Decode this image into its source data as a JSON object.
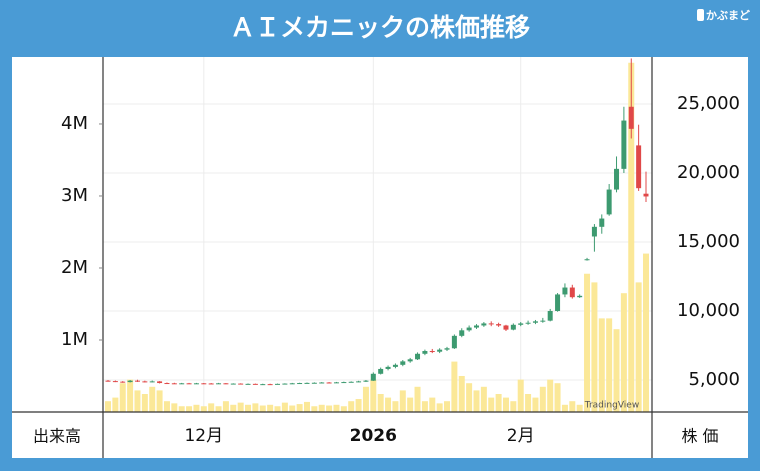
{
  "chart_data": {
    "type": "candlestick",
    "title": "ＡＩメカニックの株価推移",
    "logo": "かぶまど",
    "watermark": "TradingView",
    "y_label": "株 価",
    "y2_label": "出来高",
    "categories": [
      null,
      null,
      null,
      null,
      null,
      null,
      null,
      null,
      null,
      null,
      null,
      null,
      null,
      "12月",
      null,
      null,
      null,
      null,
      null,
      null,
      null,
      null,
      null,
      null,
      null,
      null,
      null,
      null,
      null,
      null,
      null,
      null,
      null,
      null,
      null,
      null,
      "2026",
      null,
      null,
      null,
      null,
      null,
      null,
      null,
      null,
      null,
      null,
      null,
      null,
      null,
      null,
      null,
      null,
      null,
      null,
      null,
      "2月",
      null,
      null,
      null,
      null,
      null,
      null,
      null,
      null,
      null,
      null,
      null,
      null,
      null,
      null,
      null,
      null,
      null
    ],
    "open": [
      4950,
      4920,
      4880,
      4850,
      4950,
      4900,
      4850,
      4900,
      4780,
      4760,
      4750,
      4760,
      4740,
      4760,
      4750,
      4740,
      4760,
      4720,
      4740,
      4700,
      4720,
      4690,
      4700,
      4690,
      4720,
      4740,
      4760,
      4780,
      4790,
      4800,
      4820,
      4800,
      4830,
      4850,
      4870,
      4900,
      4950,
      5450,
      5800,
      5950,
      6100,
      6350,
      6500,
      6900,
      7100,
      7050,
      7200,
      7300,
      8200,
      8600,
      8800,
      8950,
      9100,
      9050,
      8950,
      8650,
      9000,
      9100,
      9150,
      9250,
      9300,
      10000,
      11200,
      11700,
      11000,
      13700,
      15400,
      16100,
      17000,
      18800,
      20300,
      24800,
      22000,
      18500
    ],
    "high": [
      5000,
      4960,
      4920,
      5000,
      5020,
      4950,
      4960,
      4920,
      4820,
      4800,
      4790,
      4790,
      4790,
      4780,
      4780,
      4790,
      4780,
      4760,
      4760,
      4750,
      4740,
      4730,
      4730,
      4740,
      4760,
      4790,
      4800,
      4820,
      4830,
      4850,
      4850,
      4860,
      4880,
      4900,
      4940,
      5000,
      5550,
      5900,
      6050,
      6200,
      6450,
      6600,
      7000,
      7200,
      7250,
      7300,
      7400,
      8300,
      8750,
      8950,
      9050,
      9200,
      9250,
      9150,
      9000,
      9100,
      9200,
      9300,
      9350,
      9500,
      10150,
      11300,
      12000,
      11900,
      11200,
      13850,
      16300,
      17000,
      19200,
      21200,
      24800,
      28300,
      23500,
      20100
    ],
    "low": [
      4880,
      4850,
      4800,
      4820,
      4860,
      4820,
      4830,
      4750,
      4720,
      4720,
      4720,
      4710,
      4720,
      4720,
      4720,
      4720,
      4700,
      4700,
      4680,
      4680,
      4670,
      4670,
      4670,
      4670,
      4700,
      4720,
      4740,
      4750,
      4760,
      4780,
      4780,
      4780,
      4800,
      4820,
      4840,
      4860,
      4930,
      5400,
      5700,
      5850,
      6000,
      6250,
      6450,
      6800,
      6950,
      6950,
      7100,
      7250,
      8100,
      8500,
      8700,
      8850,
      8900,
      8850,
      8550,
      8600,
      8900,
      9000,
      9050,
      9150,
      9250,
      9950,
      11000,
      10900,
      10950,
      13650,
      14300,
      15600,
      16900,
      18600,
      20000,
      22500,
      18700,
      17900
    ],
    "close": [
      4920,
      4880,
      4850,
      4950,
      4900,
      4850,
      4900,
      4780,
      4760,
      4750,
      4760,
      4740,
      4760,
      4750,
      4740,
      4760,
      4720,
      4740,
      4700,
      4720,
      4690,
      4700,
      4690,
      4720,
      4740,
      4760,
      4780,
      4790,
      4800,
      4820,
      4800,
      4830,
      4850,
      4870,
      4900,
      4950,
      5450,
      5800,
      5950,
      6100,
      6350,
      6500,
      6900,
      7100,
      7050,
      7200,
      7300,
      8200,
      8600,
      8800,
      8950,
      9100,
      9050,
      8950,
      8650,
      9000,
      9100,
      9150,
      9250,
      9300,
      10000,
      11200,
      11700,
      11000,
      11100,
      13750,
      16100,
      16700,
      18800,
      20300,
      23800,
      23200,
      18900,
      18300
    ],
    "volume": [
      150000,
      200000,
      400000,
      450000,
      300000,
      250000,
      350000,
      300000,
      150000,
      120000,
      80000,
      80000,
      100000,
      80000,
      120000,
      80000,
      150000,
      100000,
      130000,
      100000,
      120000,
      90000,
      100000,
      80000,
      130000,
      90000,
      110000,
      140000,
      80000,
      100000,
      90000,
      100000,
      80000,
      150000,
      180000,
      350000,
      450000,
      250000,
      200000,
      150000,
      300000,
      200000,
      350000,
      150000,
      200000,
      120000,
      150000,
      700000,
      500000,
      400000,
      300000,
      350000,
      200000,
      250000,
      200000,
      150000,
      450000,
      250000,
      200000,
      350000,
      450000,
      400000,
      100000,
      150000,
      100000,
      1920000,
      1800000,
      1300000,
      1300000,
      1150000,
      1650000,
      4850000,
      1800000,
      2200000
    ],
    "up_color": "#3d9a70",
    "down_color": "#e04848",
    "volume_color": "#fbe898",
    "ylim": [
      2681,
      28406
    ],
    "yticks": [
      {
        "value": 5000,
        "label": "5,000"
      },
      {
        "value": 10000,
        "label": "10,000"
      },
      {
        "value": 15000,
        "label": "15,000"
      },
      {
        "value": 20000,
        "label": "20,000"
      },
      {
        "value": 25000,
        "label": "25,000"
      }
    ],
    "y2lim": [
      0,
      4930000
    ],
    "y2ticks": [
      {
        "value": 1000000,
        "label": "1M"
      },
      {
        "value": 2000000,
        "label": "2M"
      },
      {
        "value": 3000000,
        "label": "3M"
      },
      {
        "value": 4000000,
        "label": "4M"
      }
    ],
    "grid": true
  }
}
